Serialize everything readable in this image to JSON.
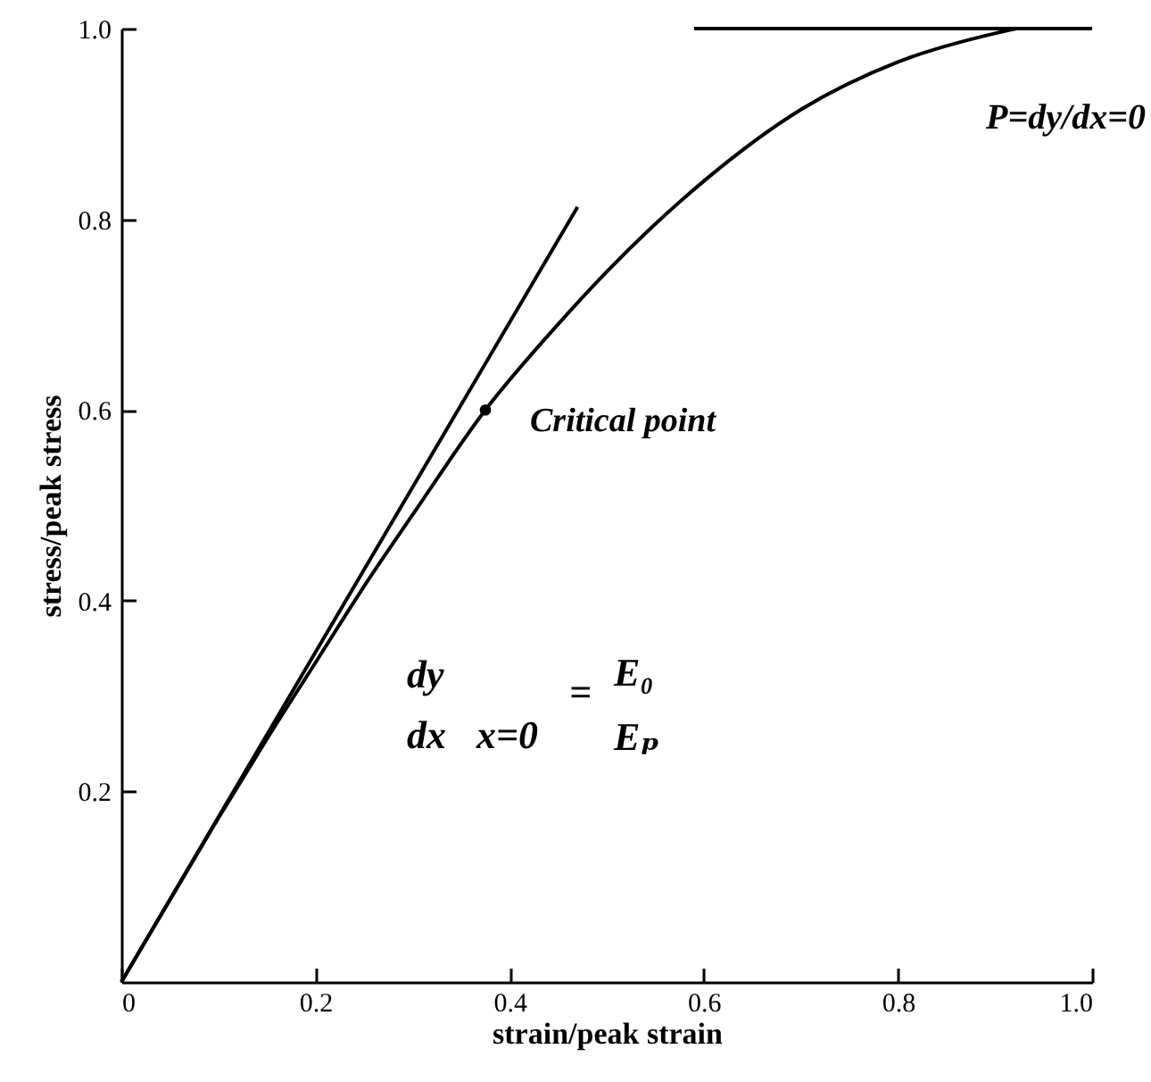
{
  "chart_data": {
    "type": "line",
    "xlabel": "strain/peak strain",
    "ylabel": "stress/peak stress",
    "xlim": [
      0,
      1
    ],
    "ylim": [
      0,
      1
    ],
    "xticks": [
      0,
      0.2,
      0.4,
      0.6,
      0.8,
      {
        "value": 1,
        "label": "1.0"
      }
    ],
    "yticks": [
      0.2,
      0.4,
      0.6,
      0.8,
      {
        "value": 1,
        "label": "1.0"
      }
    ],
    "grid": false,
    "marker": "none",
    "line_style": "solid",
    "series": [
      {
        "type": "line",
        "color": "#000000",
        "x": [
          0,
          0.05,
          0.1,
          0.15,
          0.2,
          0.25,
          0.3,
          0.375,
          0.45,
          0.5,
          0.6,
          0.7,
          0.8,
          0.9,
          0.922
        ],
        "values": [
          0,
          0.086,
          0.172,
          0.255,
          0.335,
          0.415,
          0.49,
          0.6,
          0.69,
          0.745,
          0.84,
          0.915,
          0.965,
          0.995,
          1.0
        ]
      },
      {
        "type": "line",
        "color": "#000000",
        "x": [
          0,
          0.47
        ],
        "values": [
          0,
          0.813
        ]
      },
      {
        "type": "line",
        "color": "#000000",
        "x": [
          0.59,
          1.0
        ],
        "values": [
          1.0,
          1.0
        ]
      },
      {
        "type": "scatter",
        "color": "#000000",
        "marker": "circle",
        "x": [
          0.375
        ],
        "values": [
          0.6
        ]
      }
    ],
    "annotations": [
      {
        "text": "Critical point",
        "x": 0.375,
        "y": 0.6
      },
      "P=dy/dx=0",
      "dy",
      "dx",
      "x=0",
      "=",
      "E₀",
      "Eₚ"
    ]
  }
}
